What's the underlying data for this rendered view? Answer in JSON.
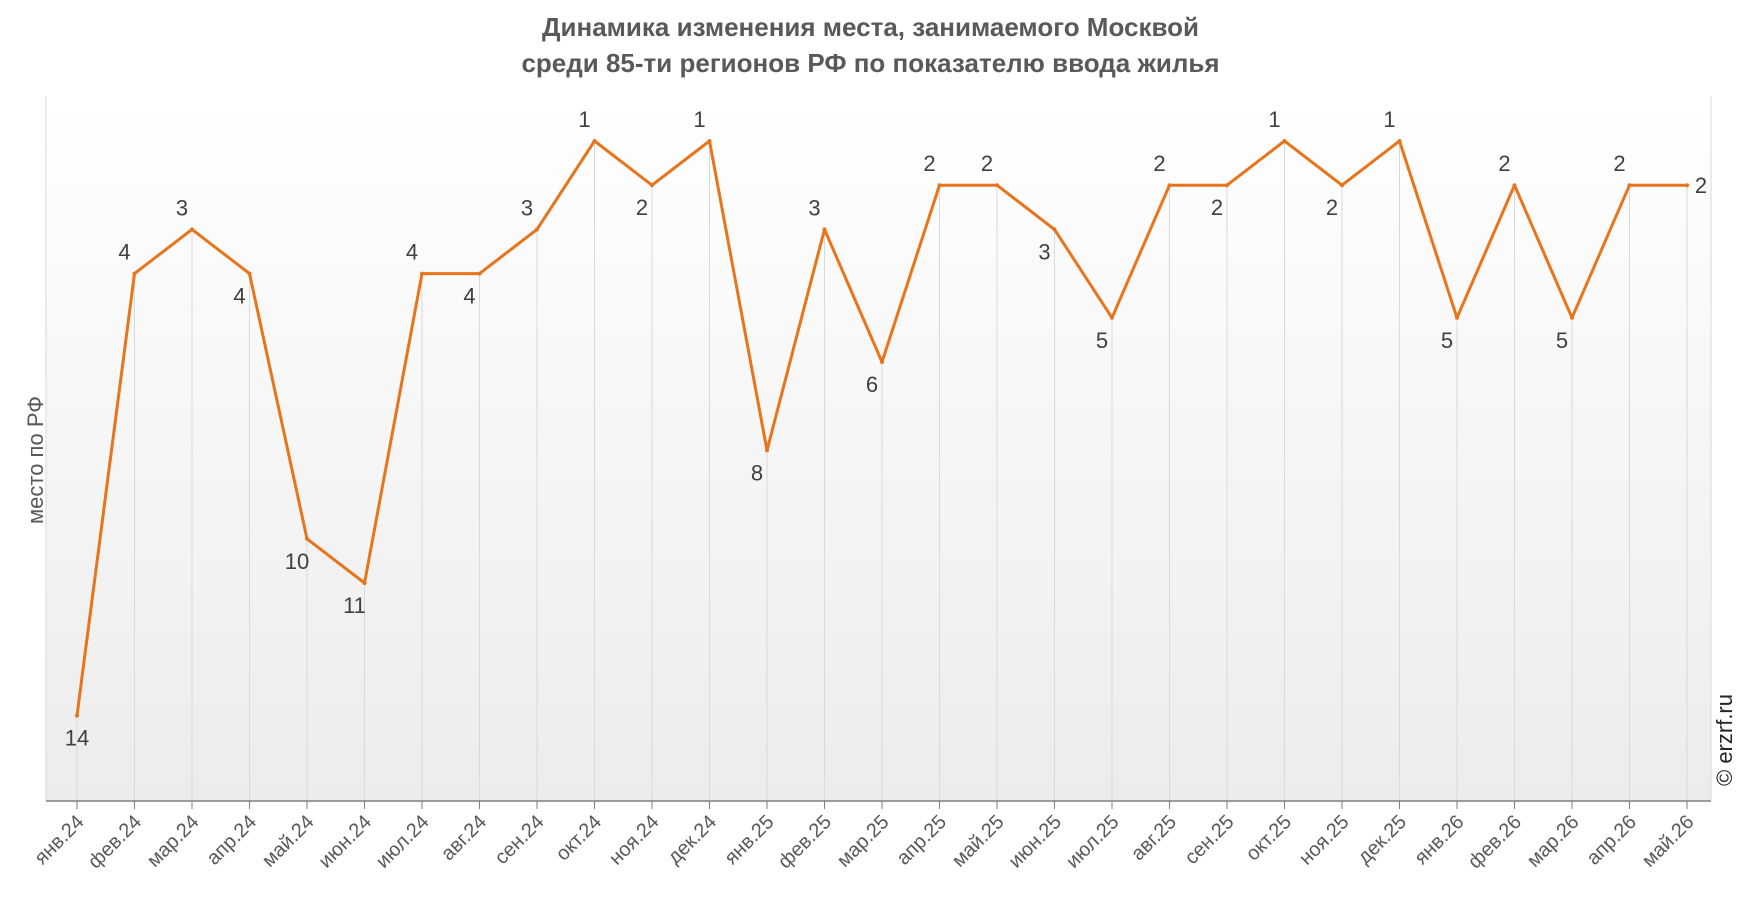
{
  "chart_data": {
    "type": "line",
    "title": "Динамика изменения места, занимаемого Москвой",
    "subtitle": "среди 85-ти регионов РФ по показателю ввода жилья",
    "xlabel": "",
    "ylabel": "место по РФ",
    "y_reversed": true,
    "ylim": [
      15,
      0
    ],
    "grid": "vertical",
    "categories": [
      "янв.24",
      "фев.24",
      "мар.24",
      "апр.24",
      "май.24",
      "июн.24",
      "июл.24",
      "авг.24",
      "сен.24",
      "окт.24",
      "ноя.24",
      "дек.24",
      "янв.25",
      "фев.25",
      "мар.25",
      "апр.25",
      "май.25",
      "июн.25",
      "июл.25",
      "авг.25",
      "сен.25",
      "окт.25",
      "ноя.25",
      "дек.25",
      "янв.26",
      "фев.26",
      "мар.26",
      "апр.26",
      "май.26"
    ],
    "series": [
      {
        "values": [
          14,
          4,
          3,
          4,
          10,
          11,
          4,
          4,
          3,
          1,
          2,
          1,
          8,
          3,
          6,
          2,
          2,
          3,
          5,
          2,
          2,
          1,
          2,
          1,
          5,
          2,
          5,
          2,
          2
        ]
      }
    ],
    "line_color": "#e8741b",
    "credit": "© erzrf.ru"
  }
}
